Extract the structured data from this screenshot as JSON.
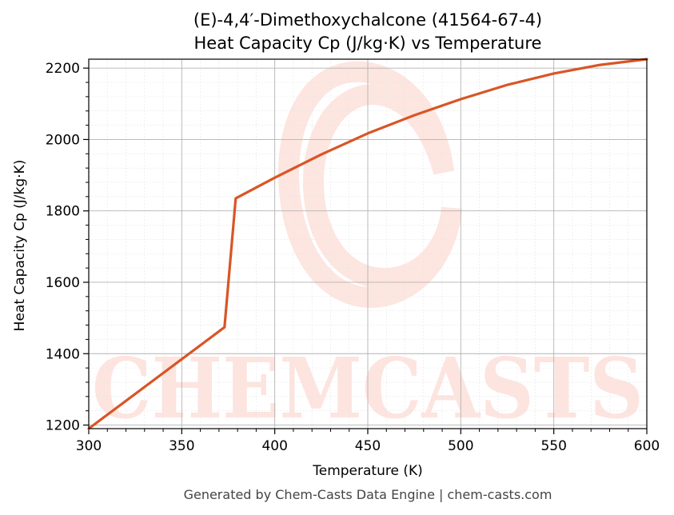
{
  "chart_data": {
    "type": "line",
    "title": "(E)-4,4′-Dimethoxychalcone (41564-67-4)",
    "subtitle": "Heat Capacity Cp (J/kg·K) vs Temperature",
    "xlabel": "Temperature (K)",
    "ylabel": "Heat Capacity Cp (J/kg·K)",
    "xlim": [
      300,
      600
    ],
    "ylim": [
      1190,
      2225
    ],
    "x_ticks": [
      300,
      350,
      400,
      450,
      500,
      550,
      600
    ],
    "y_ticks": [
      1200,
      1400,
      1600,
      1800,
      2000,
      2200
    ],
    "grid": true,
    "line_color": "#d95525",
    "x": [
      300,
      373,
      379,
      400,
      425,
      450,
      475,
      500,
      525,
      550,
      575,
      600
    ],
    "y": [
      1190,
      1474,
      1835,
      1893,
      1958,
      2017,
      2068,
      2113,
      2153,
      2185,
      2209,
      2225
    ]
  },
  "watermark": {
    "text": "CHEMCASTS",
    "color": "#fde0da"
  },
  "footer": "Generated by Chem-Casts Data Engine | chem-casts.com"
}
